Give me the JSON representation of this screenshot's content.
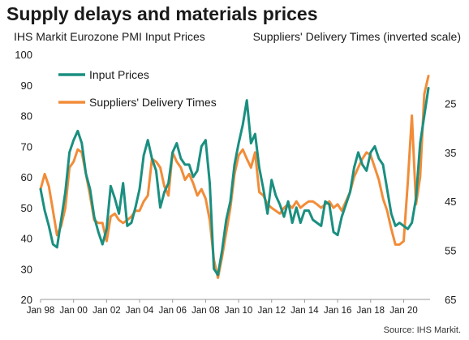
{
  "title": "Supply delays and materials prices",
  "left_axis_title": "IHS Markit Eurozone PMI Input Prices",
  "right_axis_title": "Suppliers' Delivery Times (inverted scale)",
  "source": "Source: IHS Markit.",
  "colors": {
    "input_prices": "#1a8f80",
    "delivery_times": "#f28c38"
  },
  "chart_data": {
    "type": "line",
    "title": "Supply delays and materials prices",
    "legend_position": "top-left",
    "grid": false,
    "x_ticks": [
      "Jan 98",
      "Jan 00",
      "Jan 02",
      "Jan 04",
      "Jan 06",
      "Jan 08",
      "Jan 10",
      "Jan 12",
      "Jan 14",
      "Jan 16",
      "Jan 18",
      "Jan 20"
    ],
    "left_axis": {
      "label": "IHS Markit Eurozone PMI Input Prices",
      "ylim": [
        20,
        100
      ],
      "ticks": [
        20,
        30,
        40,
        50,
        60,
        70,
        80,
        90,
        100
      ]
    },
    "right_axis": {
      "label": "Suppliers' Delivery Times (inverted scale)",
      "inverted": true,
      "ylim": [
        65,
        15
      ],
      "ticks": [
        25,
        35,
        45,
        55,
        65
      ]
    },
    "series": [
      {
        "name": "Input Prices",
        "axis": "left",
        "x": [
          1998.0,
          1998.25,
          1998.5,
          1998.75,
          1999.0,
          1999.25,
          1999.5,
          1999.75,
          2000.0,
          2000.25,
          2000.5,
          2000.75,
          2001.0,
          2001.25,
          2001.5,
          2001.75,
          2002.0,
          2002.25,
          2002.5,
          2002.75,
          2003.0,
          2003.25,
          2003.5,
          2003.75,
          2004.0,
          2004.25,
          2004.5,
          2004.75,
          2005.0,
          2005.25,
          2005.5,
          2005.75,
          2006.0,
          2006.25,
          2006.5,
          2006.75,
          2007.0,
          2007.25,
          2007.5,
          2007.75,
          2008.0,
          2008.25,
          2008.5,
          2008.75,
          2009.0,
          2009.25,
          2009.5,
          2009.75,
          2010.0,
          2010.25,
          2010.5,
          2010.75,
          2011.0,
          2011.25,
          2011.5,
          2011.75,
          2012.0,
          2012.25,
          2012.5,
          2012.75,
          2013.0,
          2013.25,
          2013.5,
          2013.75,
          2014.0,
          2014.25,
          2014.5,
          2014.75,
          2015.0,
          2015.25,
          2015.5,
          2015.75,
          2016.0,
          2016.25,
          2016.5,
          2016.75,
          2017.0,
          2017.25,
          2017.5,
          2017.75,
          2018.0,
          2018.25,
          2018.5,
          2018.75,
          2019.0,
          2019.25,
          2019.5,
          2019.75,
          2020.0,
          2020.25,
          2020.5,
          2020.75,
          2021.0,
          2021.25,
          2021.5
        ],
        "values": [
          56,
          49,
          44,
          38,
          37,
          46,
          55,
          68,
          72,
          75,
          71,
          61,
          56,
          47,
          42,
          38,
          43,
          57,
          53,
          48,
          58,
          44,
          45,
          50,
          56,
          67,
          72,
          66,
          62,
          50,
          55,
          58,
          68,
          71,
          66,
          64,
          64,
          60,
          62,
          70,
          72,
          58,
          30,
          28,
          36,
          46,
          52,
          64,
          71,
          77,
          85,
          71,
          74,
          63,
          56,
          48,
          59,
          54,
          51,
          47,
          52,
          45,
          50,
          45,
          49,
          49,
          46,
          45,
          44,
          52,
          51,
          42,
          41,
          47,
          51,
          55,
          63,
          68,
          64,
          62,
          68,
          70,
          66,
          64,
          56,
          48,
          44,
          45,
          44,
          43,
          45,
          53,
          71,
          80,
          89
        ],
        "values_note": ""
      },
      {
        "name": "Suppliers' Delivery Times",
        "axis": "right",
        "x": [
          1998.0,
          1998.25,
          1998.5,
          1998.75,
          1999.0,
          1999.25,
          1999.5,
          1999.75,
          2000.0,
          2000.25,
          2000.5,
          2000.75,
          2001.0,
          2001.25,
          2001.5,
          2001.75,
          2002.0,
          2002.25,
          2002.5,
          2002.75,
          2003.0,
          2003.25,
          2003.5,
          2003.75,
          2004.0,
          2004.25,
          2004.5,
          2004.75,
          2005.0,
          2005.25,
          2005.5,
          2005.75,
          2006.0,
          2006.25,
          2006.5,
          2006.75,
          2007.0,
          2007.25,
          2007.5,
          2007.75,
          2008.0,
          2008.25,
          2008.5,
          2008.75,
          2009.0,
          2009.25,
          2009.5,
          2009.75,
          2010.0,
          2010.25,
          2010.5,
          2010.75,
          2011.0,
          2011.25,
          2011.5,
          2011.75,
          2012.0,
          2012.25,
          2012.5,
          2012.75,
          2013.0,
          2013.25,
          2013.5,
          2013.75,
          2014.0,
          2014.25,
          2014.5,
          2014.75,
          2015.0,
          2015.25,
          2015.5,
          2015.75,
          2016.0,
          2016.25,
          2016.5,
          2016.75,
          2017.0,
          2017.25,
          2017.5,
          2017.75,
          2018.0,
          2018.25,
          2018.5,
          2018.75,
          2019.0,
          2019.25,
          2019.5,
          2019.75,
          2020.0,
          2020.25,
          2020.5,
          2020.75,
          2021.0,
          2021.25,
          2021.5
        ],
        "values": [
          42.5,
          39.4,
          41.9,
          46.9,
          51.9,
          50,
          46.3,
          38.1,
          36.9,
          34.4,
          35,
          39.4,
          43.8,
          48.8,
          49.4,
          49.4,
          53.1,
          48.1,
          47.5,
          48.8,
          49.4,
          48.8,
          48.1,
          46.9,
          46.9,
          45,
          43.8,
          36.3,
          36.9,
          38.1,
          41.9,
          43.8,
          35,
          36.9,
          38.1,
          40.6,
          39.4,
          41.3,
          43.8,
          42.5,
          44.4,
          48.8,
          56.9,
          60.6,
          56.3,
          51.3,
          46.3,
          39.4,
          35.6,
          34.4,
          36.3,
          38.1,
          35,
          43.1,
          43.8,
          45.6,
          46.3,
          46.9,
          47.5,
          46.3,
          45.6,
          46.3,
          45,
          46.3,
          45.6,
          45,
          45,
          45.6,
          46.3,
          45.6,
          45,
          46.3,
          45.6,
          46.9,
          45,
          43.1,
          40,
          38.1,
          36.3,
          35,
          35.6,
          38.1,
          40.6,
          44.4,
          46.9,
          50.6,
          53.8,
          53.8,
          53.1,
          41.3,
          27.5,
          45.6,
          40,
          23.1,
          19.4
        ],
        "values_note": ""
      }
    ]
  }
}
